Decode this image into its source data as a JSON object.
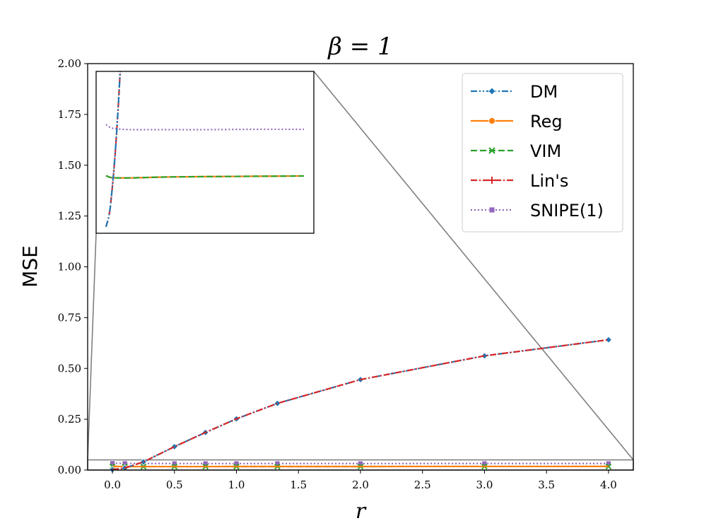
{
  "chart_data": {
    "type": "line",
    "title": "β = 1",
    "xlabel": "r",
    "ylabel": "MSE",
    "xlim": [
      -0.2,
      4.2
    ],
    "ylim": [
      0,
      2.0
    ],
    "x_ticks": [
      "0.0",
      "0.5",
      "1.0",
      "1.5",
      "2.0",
      "2.5",
      "3.0",
      "3.5",
      "4.0"
    ],
    "y_ticks": [
      "0.00",
      "0.25",
      "0.50",
      "0.75",
      "1.00",
      "1.25",
      "1.50",
      "1.75",
      "2.00"
    ],
    "grid": false,
    "legend_position": "top-right",
    "series": [
      {
        "name": "DM",
        "color": "#1f77b4",
        "marker": "diamond",
        "dash": "dashdotdot",
        "x": [
          0.0,
          0.1,
          0.25,
          0.5,
          0.75,
          1.0,
          1.33,
          2.0,
          3.0,
          4.0
        ],
        "y": [
          0.002,
          0.01,
          0.04,
          0.115,
          0.185,
          0.252,
          0.328,
          0.445,
          0.562,
          0.641
        ]
      },
      {
        "name": "Reg",
        "color": "#ff7f0e",
        "marker": "circle",
        "dash": "solid",
        "x": [
          0.0,
          0.1,
          0.25,
          0.5,
          0.75,
          1.0,
          1.33,
          2.0,
          3.0,
          4.0
        ],
        "y": [
          0.0178,
          0.0172,
          0.0171,
          0.0171,
          0.0172,
          0.0173,
          0.0174,
          0.0175,
          0.0176,
          0.0177
        ]
      },
      {
        "name": "VIM",
        "color": "#2ca02c",
        "marker": "x",
        "dash": "dashed",
        "x": [
          0.0,
          0.1,
          0.25,
          0.5,
          0.75,
          1.0,
          1.33,
          2.0,
          3.0,
          4.0
        ],
        "y": [
          0.0178,
          0.0172,
          0.0171,
          0.0171,
          0.0172,
          0.0173,
          0.0174,
          0.0175,
          0.0176,
          0.0177
        ]
      },
      {
        "name": "Lin's",
        "color": "#d62728",
        "marker": "plus",
        "dash": "dashdot",
        "x": [
          0.0,
          0.1,
          0.25,
          0.5,
          0.75,
          1.0,
          1.33,
          2.0,
          3.0,
          4.0
        ],
        "y": [
          0.002,
          0.01,
          0.04,
          0.115,
          0.185,
          0.252,
          0.328,
          0.445,
          0.562,
          0.641
        ]
      },
      {
        "name": "SNIPE(1)",
        "color": "#9467bd",
        "marker": "square",
        "dash": "dotted",
        "x": [
          0.0,
          0.1,
          0.25,
          0.5,
          0.75,
          1.0,
          1.33,
          2.0,
          3.0,
          4.0
        ],
        "y": [
          0.0336,
          0.0326,
          0.0322,
          0.032,
          0.032,
          0.032,
          0.032,
          0.032,
          0.0321,
          0.0321
        ]
      }
    ],
    "inset": {
      "xlim": [
        -0.2,
        4.2
      ],
      "ylim": [
        0.0,
        0.05
      ],
      "series_order": [
        "SNIPE(1)",
        "Reg",
        "VIM",
        "Lin's",
        "DM"
      ]
    }
  }
}
